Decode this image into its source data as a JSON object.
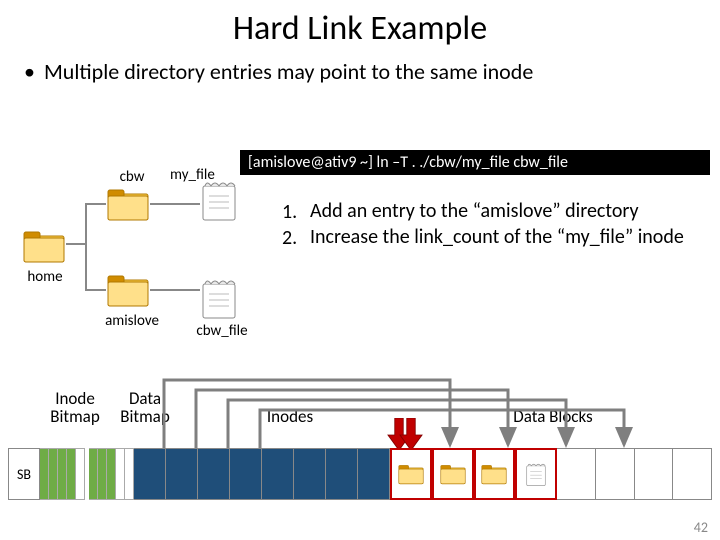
{
  "title": "Hard Link Example",
  "bullet": "Multiple directory entries may point to the same inode",
  "terminal": "[amislove@ativ9 ~] ln –T . ./cbw/my_file cbw_file",
  "tree": {
    "home": "home",
    "cbw": "cbw",
    "amislove": "amislove",
    "my_file": "my_file",
    "cbw_file": "cbw_file"
  },
  "steps": [
    {
      "n": "1.",
      "text": "Add an entry to the “amislove” directory"
    },
    {
      "n": "2.",
      "text": "Increase the link_count of the “my_file” inode"
    }
  ],
  "labels": {
    "sb": "SB",
    "inode_bitmap": "Inode\nBitmap",
    "data_bitmap": "Data\nBitmap",
    "inodes": "Inodes",
    "data_blocks": "Data Blocks"
  },
  "bitmap": {
    "inode_cols": 5,
    "inode_used": [
      0,
      1,
      2,
      3
    ],
    "data_cols": 5,
    "data_used": [
      0,
      1,
      2
    ]
  },
  "disk": {
    "inode_cells": 8,
    "block_cells": 8,
    "block_content": [
      "folder",
      "folder",
      "folder",
      "file",
      "",
      "",
      "",
      ""
    ],
    "selected_blocks": [
      0,
      1,
      2,
      3
    ]
  },
  "colors": {
    "inode_fill": "#1f4e79",
    "bitmap_used": "#6fac46",
    "arrow_gray": "#7f7f7f",
    "arrow_red": "#c00000",
    "folder_dark": "#d08c00",
    "folder_light": "#ffd24d"
  },
  "page": "42"
}
